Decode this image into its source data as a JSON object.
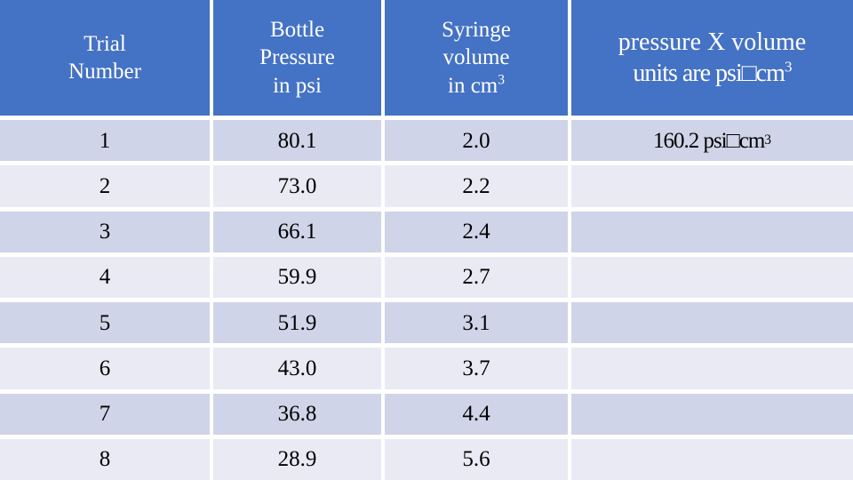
{
  "colors": {
    "header_bg": "#4472C4",
    "header_text": "#FFFFFF",
    "row_dark": "#CFD4E8",
    "row_light": "#E9EAF4",
    "data_text": "#000000",
    "divider": "#FFFFFF"
  },
  "table": {
    "headers": [
      {
        "lines": [
          "Trial",
          "Number"
        ],
        "sup": ""
      },
      {
        "lines": [
          "Bottle",
          "Pressure",
          "in psi"
        ],
        "sup": ""
      },
      {
        "lines": [
          "Syringe",
          "volume",
          "in cm"
        ],
        "sup": "3"
      },
      {
        "lines": [
          "pressure X volume",
          "units are psi□cm"
        ],
        "sup": "3"
      }
    ],
    "rows": [
      {
        "trial": "1",
        "pressure": "80.1",
        "volume": "2.0",
        "product": "160.2 psi□cm",
        "product_sup": "3"
      },
      {
        "trial": "2",
        "pressure": "73.0",
        "volume": "2.2",
        "product": "",
        "product_sup": ""
      },
      {
        "trial": "3",
        "pressure": "66.1",
        "volume": "2.4",
        "product": "",
        "product_sup": ""
      },
      {
        "trial": "4",
        "pressure": "59.9",
        "volume": "2.7",
        "product": "",
        "product_sup": ""
      },
      {
        "trial": "5",
        "pressure": "51.9",
        "volume": "3.1",
        "product": "",
        "product_sup": ""
      },
      {
        "trial": "6",
        "pressure": "43.0",
        "volume": "3.7",
        "product": "",
        "product_sup": ""
      },
      {
        "trial": "7",
        "pressure": "36.8",
        "volume": "4.4",
        "product": "",
        "product_sup": ""
      },
      {
        "trial": "8",
        "pressure": "28.9",
        "volume": "5.6",
        "product": "",
        "product_sup": ""
      }
    ]
  },
  "chart_data": {
    "type": "table",
    "title": "",
    "columns": [
      "Trial Number",
      "Bottle Pressure in psi",
      "Syringe volume in cm³",
      "pressure X volume units are psi□cm³"
    ],
    "trial_numbers": [
      1,
      2,
      3,
      4,
      5,
      6,
      7,
      8
    ],
    "series": [
      {
        "name": "Bottle Pressure in psi",
        "values": [
          80.1,
          73.0,
          66.1,
          59.9,
          51.9,
          43.0,
          36.8,
          28.9
        ]
      },
      {
        "name": "Syringe volume in cm³",
        "values": [
          2.0,
          2.2,
          2.4,
          2.7,
          3.1,
          3.7,
          4.4,
          5.6
        ]
      }
    ],
    "pressure_x_volume": [
      "160.2 psi□cm³",
      "",
      "",
      "",
      "",
      "",
      "",
      ""
    ],
    "layout": {
      "banding": "alternating rows, odd dark / even light",
      "header_fill": "#4472C4"
    }
  }
}
